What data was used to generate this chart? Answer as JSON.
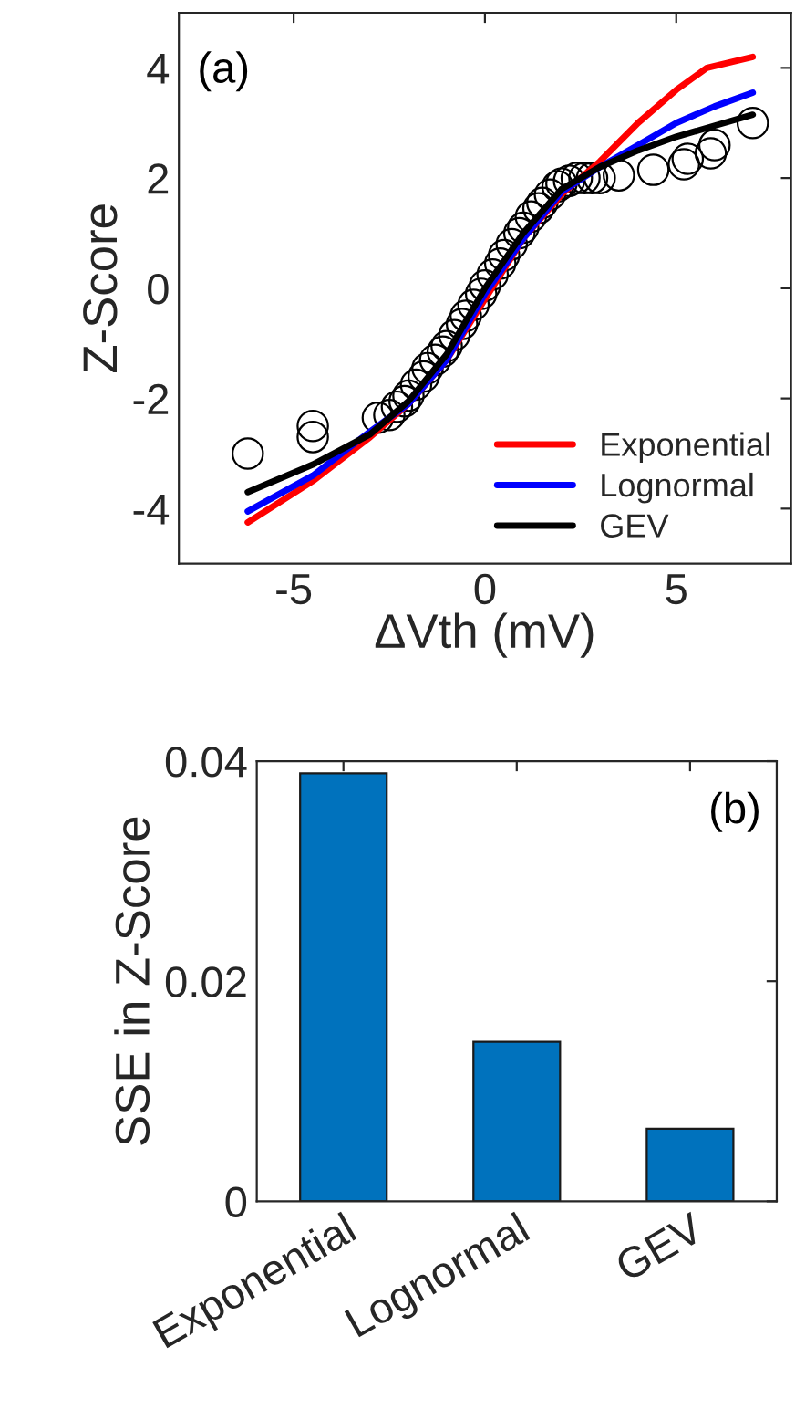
{
  "chart_data": [
    {
      "type": "scatter",
      "xlabel": "ΔVth (mV)",
      "ylabel": "Z-Score",
      "xlim": [
        -8,
        8
      ],
      "ylim": [
        -5,
        5
      ],
      "xticks": [
        -5,
        0,
        5
      ],
      "yticks": [
        -4,
        -2,
        0,
        2,
        4
      ],
      "grid": false,
      "legend": "bottom right",
      "annotations": [
        "(a)"
      ],
      "series": [
        {
          "type": "scatter",
          "color": "#000000",
          "marker": "circle",
          "x": [
            -6.2,
            -4.5,
            -4.5,
            -2.8,
            -2.5,
            -2.3,
            -2.1,
            -2.0,
            -1.8,
            -1.6,
            -1.5,
            -1.3,
            -1.1,
            -1.0,
            -0.8,
            -0.6,
            -0.5,
            -0.3,
            -0.1,
            0.0,
            0.2,
            0.4,
            0.5,
            0.7,
            0.9,
            1.0,
            1.2,
            1.4,
            1.5,
            1.7,
            1.9,
            2.0,
            2.2,
            2.4,
            2.6,
            2.8,
            3.0,
            3.5,
            4.4,
            5.2,
            5.3,
            5.9,
            6.0,
            7.0
          ],
          "values": [
            -3.0,
            -2.5,
            -2.7,
            -2.35,
            -2.3,
            -2.15,
            -2.05,
            -1.95,
            -1.75,
            -1.6,
            -1.45,
            -1.3,
            -1.15,
            -1.05,
            -0.85,
            -0.65,
            -0.5,
            -0.3,
            -0.1,
            0.05,
            0.25,
            0.45,
            0.6,
            0.8,
            1.0,
            1.1,
            1.3,
            1.45,
            1.55,
            1.7,
            1.85,
            1.9,
            1.95,
            2.0,
            2.0,
            2.0,
            2.0,
            2.05,
            2.15,
            2.25,
            2.35,
            2.45,
            2.6,
            3.0
          ]
        },
        {
          "type": "line",
          "name": "Exponential",
          "color": "#ff0000",
          "x": [
            -6.2,
            -4.5,
            -3,
            -2,
            -1,
            0,
            1,
            2,
            3,
            4,
            5,
            5.8,
            7
          ],
          "values": [
            -4.25,
            -3.5,
            -2.7,
            -2.1,
            -1.3,
            -0.2,
            0.9,
            1.7,
            2.3,
            3.0,
            3.6,
            4.0,
            4.2
          ]
        },
        {
          "type": "line",
          "name": "Lognormal",
          "color": "#0000ff",
          "x": [
            -6.2,
            -4.5,
            -3,
            -2,
            -1,
            0,
            1,
            2,
            3,
            4,
            5,
            6,
            7
          ],
          "values": [
            -4.05,
            -3.4,
            -2.6,
            -2.1,
            -1.3,
            -0.1,
            0.9,
            1.75,
            2.2,
            2.6,
            3.0,
            3.3,
            3.55
          ]
        },
        {
          "type": "line",
          "name": "GEV",
          "color": "#000000",
          "x": [
            -6.2,
            -4.5,
            -3,
            -2,
            -1,
            0,
            1,
            2,
            3,
            4,
            5,
            6,
            7
          ],
          "values": [
            -3.7,
            -3.2,
            -2.65,
            -2.05,
            -1.2,
            0.0,
            1.0,
            1.8,
            2.2,
            2.5,
            2.75,
            2.95,
            3.15
          ]
        }
      ]
    },
    {
      "type": "bar",
      "ylabel": "SSE in Z-Score",
      "categories": [
        "Exponential",
        "Lognormal",
        "GEV"
      ],
      "values": [
        0.0389,
        0.0145,
        0.0066
      ],
      "color": "#0072bd",
      "ylim": [
        0,
        0.04
      ],
      "yticks": [
        0,
        0.02,
        0.04
      ],
      "grid": false,
      "annotations": [
        "(b)"
      ]
    }
  ]
}
